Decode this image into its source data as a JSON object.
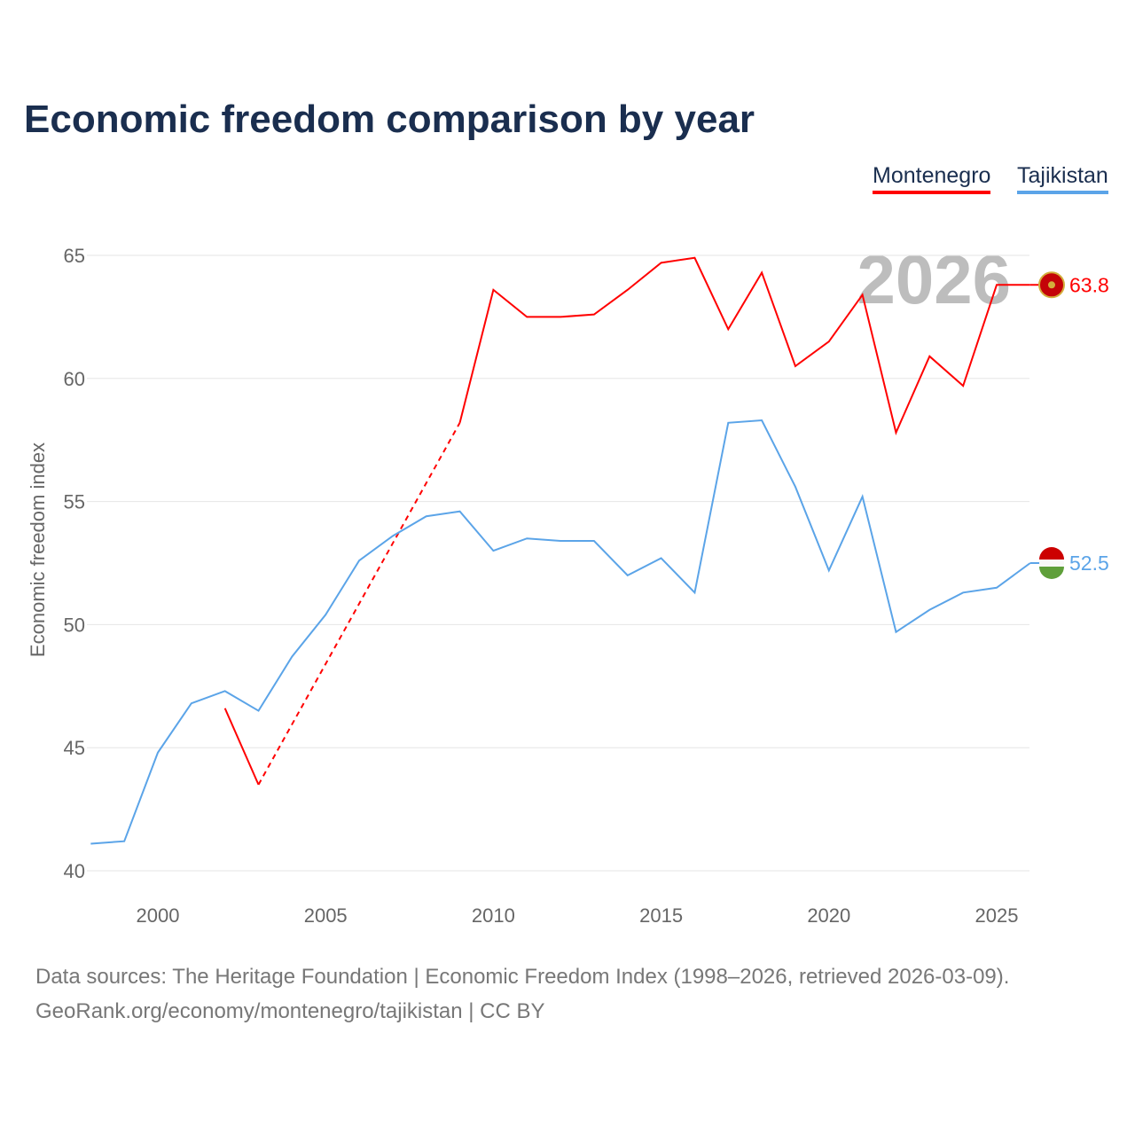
{
  "title": "Economic freedom comparison by year",
  "footer": {
    "line1": "Data sources: The Heritage Foundation | Economic Freedom Index (1998–2026, retrieved 2026-03-09).",
    "line2": "GeoRank.org/economy/montenegro/tajikistan | CC BY"
  },
  "chart_data": {
    "type": "line",
    "title": "Economic freedom comparison by year",
    "xlabel": "",
    "ylabel": "Economic freedom index",
    "xlim": [
      1997.9,
      2026
    ],
    "ylim": [
      40,
      65
    ],
    "yticks": [
      "40",
      "45",
      "50",
      "55",
      "60",
      "65"
    ],
    "xticks": [
      "2000",
      "2005",
      "2010",
      "2015",
      "2020",
      "2025"
    ],
    "grid": true,
    "legend_position": "top-right",
    "year_label": "2026",
    "series": [
      {
        "name": "Montenegro",
        "color": "#ff0000",
        "end_label": "63.8",
        "x": [
          2002,
          2003,
          2009,
          2010,
          2011,
          2012,
          2013,
          2014,
          2015,
          2016,
          2017,
          2018,
          2019,
          2020,
          2021,
          2022,
          2023,
          2024,
          2025,
          2026
        ],
        "y": [
          46.6,
          43.5,
          58.2,
          63.6,
          62.5,
          62.5,
          62.6,
          63.6,
          64.7,
          64.9,
          62.0,
          64.3,
          60.5,
          61.5,
          63.4,
          57.8,
          60.9,
          59.7,
          63.8,
          63.8
        ],
        "gap_dashed": [
          2003,
          2009
        ]
      },
      {
        "name": "Tajikistan",
        "color": "#5ba4e8",
        "end_label": "52.5",
        "x": [
          1998,
          1999,
          2000,
          2001,
          2002,
          2003,
          2004,
          2005,
          2006,
          2007,
          2008,
          2009,
          2010,
          2011,
          2012,
          2013,
          2014,
          2015,
          2016,
          2017,
          2018,
          2019,
          2020,
          2021,
          2022,
          2023,
          2024,
          2025,
          2026
        ],
        "y": [
          41.1,
          41.2,
          44.8,
          46.8,
          47.3,
          46.5,
          48.7,
          50.4,
          52.6,
          53.6,
          54.4,
          54.6,
          53.0,
          53.5,
          53.4,
          53.4,
          52.0,
          52.7,
          51.3,
          58.2,
          58.3,
          55.6,
          52.2,
          55.2,
          49.7,
          50.6,
          51.3,
          51.5,
          52.5
        ]
      }
    ]
  }
}
